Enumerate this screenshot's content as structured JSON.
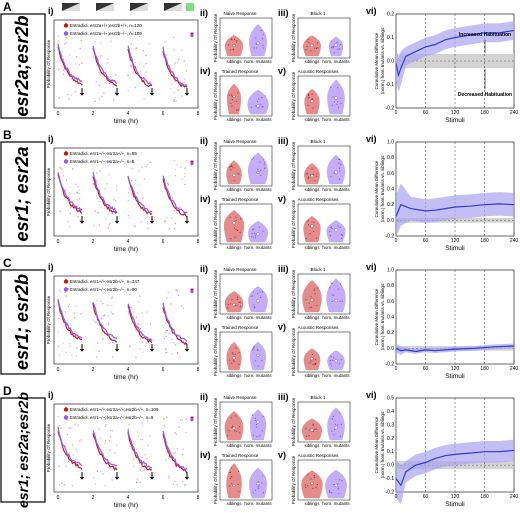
{
  "colors": {
    "sibling": "#cc1a1a",
    "mutant": "#8a5cf5",
    "cmd_line": "#2f3bd6",
    "cmd_band": "#a9a4f0",
    "gray_band": "#c8c8c8"
  },
  "panels": [
    {
      "letter": "A",
      "genotype": "esr2a;esr2b",
      "legend": [
        "Estradiol, esr2a+/+;esr2b+/+, n=120",
        "Estradiol, esr2a−/−;esr2b−/−, n=109"
      ],
      "cmd_y": {
        "ticks": [
          "-0.2",
          "-0.1",
          "0.0",
          "0.1",
          "0.2"
        ],
        "range": [
          -0.2,
          0.2
        ]
      },
      "annotations": [
        "Increased Habituation",
        "Decreased Habituation"
      ],
      "cmd_points": [
        [
          0,
          -0.01
        ],
        [
          5,
          -0.06
        ],
        [
          10,
          -0.03
        ],
        [
          20,
          0.02
        ],
        [
          40,
          0.04
        ],
        [
          60,
          0.06
        ],
        [
          80,
          0.07
        ],
        [
          100,
          0.09
        ],
        [
          120,
          0.1
        ],
        [
          150,
          0.11
        ],
        [
          180,
          0.12
        ],
        [
          210,
          0.12
        ],
        [
          240,
          0.13
        ]
      ],
      "cmd_spread": 0.04
    },
    {
      "letter": "B",
      "genotype": "esr1; esr2a",
      "legend": [
        "Estradiol, esr1+/+;esr2a+/+, n=95",
        "Estradiol, esr1−/−;esr2a−/−, n=6"
      ],
      "cmd_y": {
        "ticks": [
          "-0.2",
          "0.0",
          "0.2",
          "0.4",
          "0.6",
          "0.8",
          "1.0"
        ],
        "range": [
          -0.2,
          1.0
        ]
      },
      "annotations": [],
      "cmd_points": [
        [
          0,
          0.05
        ],
        [
          10,
          0.2
        ],
        [
          30,
          0.15
        ],
        [
          60,
          0.12
        ],
        [
          80,
          0.13
        ],
        [
          100,
          0.15
        ],
        [
          120,
          0.17
        ],
        [
          150,
          0.18
        ],
        [
          180,
          0.2
        ],
        [
          210,
          0.21
        ],
        [
          240,
          0.2
        ]
      ],
      "cmd_spread": 0.15
    },
    {
      "letter": "C",
      "genotype": "esr1; esr2b",
      "legend": [
        "Estradiol, esr1+/+;esr2b+/+, n=347",
        "Estradiol, esr1−/−;esr2b−/−, n=90"
      ],
      "cmd_y": {
        "ticks": [
          "-0.2",
          "0.0",
          "0.2",
          "0.4",
          "0.6",
          "0.8",
          "1.0"
        ],
        "range": [
          -0.2,
          1.0
        ]
      },
      "annotations": [],
      "cmd_points": [
        [
          0,
          0.0
        ],
        [
          10,
          -0.03
        ],
        [
          20,
          -0.02
        ],
        [
          40,
          -0.04
        ],
        [
          60,
          -0.02
        ],
        [
          80,
          -0.03
        ],
        [
          100,
          -0.02
        ],
        [
          120,
          -0.01
        ],
        [
          160,
          0.0
        ],
        [
          200,
          0.02
        ],
        [
          240,
          0.03
        ]
      ],
      "cmd_spread": 0.03
    },
    {
      "letter": "D",
      "genotype": "esr1; esr2a;esr2b",
      "legend": [
        "Estradiol, esr1+/+;esr2a+/+;esr2b+/+, n=106",
        "Estradiol, esr1−/−;esr2a−/−;esr2b−/−, n=9"
      ],
      "cmd_y": {
        "ticks": [
          "-0.2",
          "-0.1",
          "0.0",
          "0.1",
          "0.2",
          "0.3",
          "0.4",
          "0.5"
        ],
        "range": [
          -0.2,
          0.5
        ]
      },
      "annotations": [],
      "cmd_points": [
        [
          0,
          -0.1
        ],
        [
          10,
          -0.15
        ],
        [
          20,
          -0.05
        ],
        [
          40,
          0.0
        ],
        [
          60,
          0.02
        ],
        [
          80,
          0.05
        ],
        [
          100,
          0.07
        ],
        [
          120,
          0.08
        ],
        [
          150,
          0.09
        ],
        [
          180,
          0.1
        ],
        [
          210,
          0.1
        ],
        [
          240,
          0.11
        ]
      ],
      "cmd_spread": 0.08
    }
  ],
  "labels": {
    "i": "i)",
    "ii": "ii)",
    "iii": "iii)",
    "iv": "iv)",
    "v": "v)",
    "vi": "vi)",
    "time_axis": "time (hr)",
    "prob_axis": "Probability Of Response",
    "naive": "Naive Response",
    "block1": "Block 1",
    "trained": "Trained Response",
    "acoustic": "Acoustic Responses",
    "siblings": "siblings",
    "mutants": "hom. mutants",
    "stimuli": "Stimuli",
    "cmd_ylabel_1": "Cumulative Mean Difference",
    "cmd_ylabel_2": "(norm.) hom. mutants vs. siblings",
    "time_ticks": [
      "0",
      "2",
      "4",
      "6",
      "8"
    ],
    "stim_ticks": [
      "0",
      "60",
      "120",
      "180",
      "240"
    ]
  }
}
